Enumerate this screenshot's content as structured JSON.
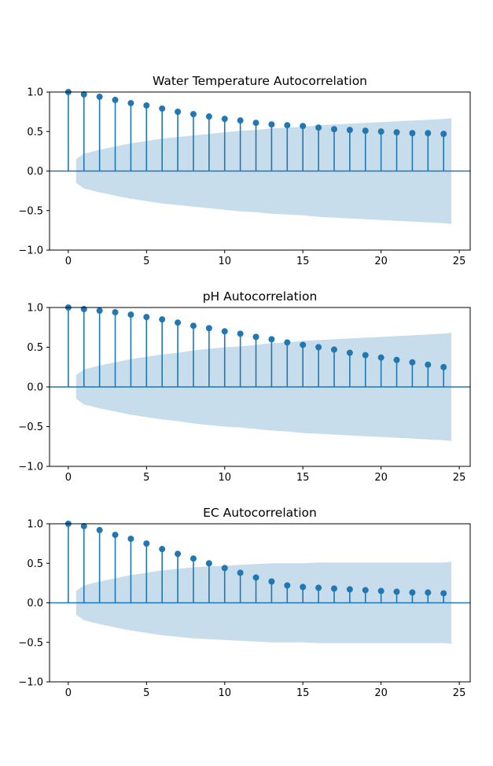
{
  "chart_data": [
    {
      "type": "stem",
      "title": "Water Temperature Autocorrelation",
      "xlabel": "",
      "ylabel": "",
      "xlim": [
        -1.2,
        25.7
      ],
      "ylim": [
        -1.0,
        1.0
      ],
      "xticks": [
        0,
        5,
        10,
        15,
        20,
        25
      ],
      "yticks": [
        -1.0,
        -0.5,
        0.0,
        0.5,
        1.0
      ],
      "colors": {
        "stem": "#1f77b4",
        "band": "#1f77b4"
      },
      "lags": [
        0,
        1,
        2,
        3,
        4,
        5,
        6,
        7,
        8,
        9,
        10,
        11,
        12,
        13,
        14,
        15,
        16,
        17,
        18,
        19,
        20,
        21,
        22,
        23,
        24
      ],
      "values": [
        1.0,
        0.97,
        0.94,
        0.9,
        0.86,
        0.83,
        0.79,
        0.75,
        0.72,
        0.69,
        0.66,
        0.64,
        0.61,
        0.59,
        0.58,
        0.57,
        0.55,
        0.53,
        0.52,
        0.51,
        0.5,
        0.49,
        0.48,
        0.48,
        0.47
      ],
      "confidence_band": [
        0.15,
        0.22,
        0.27,
        0.31,
        0.35,
        0.38,
        0.41,
        0.43,
        0.45,
        0.47,
        0.49,
        0.51,
        0.52,
        0.54,
        0.55,
        0.56,
        0.58,
        0.59,
        0.6,
        0.61,
        0.62,
        0.63,
        0.64,
        0.65,
        0.66
      ],
      "band_end": 0.67
    },
    {
      "type": "stem",
      "title": "pH Autocorrelation",
      "xlabel": "",
      "ylabel": "",
      "xlim": [
        -1.2,
        25.7
      ],
      "ylim": [
        -1.0,
        1.0
      ],
      "xticks": [
        0,
        5,
        10,
        15,
        20,
        25
      ],
      "yticks": [
        -1.0,
        -0.5,
        0.0,
        0.5,
        1.0
      ],
      "colors": {
        "stem": "#1f77b4",
        "band": "#1f77b4"
      },
      "lags": [
        0,
        1,
        2,
        3,
        4,
        5,
        6,
        7,
        8,
        9,
        10,
        11,
        12,
        13,
        14,
        15,
        16,
        17,
        18,
        19,
        20,
        21,
        22,
        23,
        24
      ],
      "values": [
        1.0,
        0.98,
        0.96,
        0.94,
        0.91,
        0.88,
        0.85,
        0.81,
        0.77,
        0.74,
        0.7,
        0.67,
        0.63,
        0.6,
        0.56,
        0.53,
        0.5,
        0.47,
        0.43,
        0.4,
        0.37,
        0.34,
        0.31,
        0.28,
        0.25
      ],
      "confidence_band": [
        0.15,
        0.22,
        0.27,
        0.31,
        0.35,
        0.38,
        0.41,
        0.43,
        0.46,
        0.48,
        0.5,
        0.51,
        0.53,
        0.55,
        0.56,
        0.58,
        0.59,
        0.6,
        0.61,
        0.62,
        0.63,
        0.64,
        0.65,
        0.66,
        0.67
      ],
      "band_end": 0.68
    },
    {
      "type": "stem",
      "title": "EC Autocorrelation",
      "xlabel": "",
      "ylabel": "",
      "xlim": [
        -1.2,
        25.7
      ],
      "ylim": [
        -1.0,
        1.0
      ],
      "xticks": [
        0,
        5,
        10,
        15,
        20,
        25
      ],
      "yticks": [
        -1.0,
        -0.5,
        0.0,
        0.5,
        1.0
      ],
      "colors": {
        "stem": "#1f77b4",
        "band": "#1f77b4"
      },
      "lags": [
        0,
        1,
        2,
        3,
        4,
        5,
        6,
        7,
        8,
        9,
        10,
        11,
        12,
        13,
        14,
        15,
        16,
        17,
        18,
        19,
        20,
        21,
        22,
        23,
        24
      ],
      "values": [
        1.0,
        0.97,
        0.92,
        0.86,
        0.81,
        0.75,
        0.68,
        0.62,
        0.56,
        0.5,
        0.44,
        0.38,
        0.32,
        0.27,
        0.22,
        0.2,
        0.19,
        0.18,
        0.17,
        0.16,
        0.15,
        0.14,
        0.13,
        0.13,
        0.12
      ],
      "confidence_band": [
        0.15,
        0.22,
        0.27,
        0.31,
        0.35,
        0.38,
        0.41,
        0.43,
        0.45,
        0.46,
        0.47,
        0.48,
        0.49,
        0.5,
        0.5,
        0.5,
        0.51,
        0.51,
        0.51,
        0.51,
        0.51,
        0.51,
        0.51,
        0.51,
        0.51
      ],
      "band_end": 0.52
    }
  ]
}
